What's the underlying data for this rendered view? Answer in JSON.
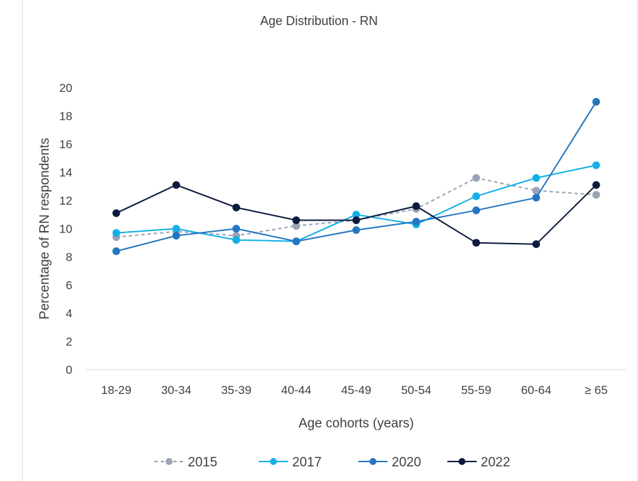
{
  "chart_data": {
    "type": "line",
    "title": "Age Distribution - RN",
    "xlabel": "Age cohorts (years)",
    "ylabel": "Percentage of RN respondents",
    "categories": [
      "18-29",
      "30-34",
      "35-39",
      "40-44",
      "45-49",
      "50-54",
      "55-59",
      "60-64",
      "≥ 65"
    ],
    "ylim": [
      0,
      20
    ],
    "yticks": [
      "0",
      "2",
      "4",
      "6",
      "8",
      "10",
      "12",
      "14",
      "16",
      "18",
      "20"
    ],
    "grid": false,
    "legend_position": "bottom",
    "series": [
      {
        "name": "2015",
        "color": "#9aa3b5",
        "dashed": true,
        "values": [
          9.4,
          9.8,
          9.5,
          10.2,
          10.6,
          11.4,
          13.6,
          12.7,
          12.4
        ]
      },
      {
        "name": "2017",
        "color": "#12b0e6",
        "dashed": false,
        "values": [
          9.7,
          10.0,
          9.2,
          9.1,
          11.0,
          10.3,
          12.3,
          13.6,
          14.5
        ]
      },
      {
        "name": "2020",
        "color": "#2476c1",
        "dashed": false,
        "values": [
          8.4,
          9.5,
          10.0,
          9.1,
          9.9,
          10.5,
          11.3,
          12.2,
          19.0
        ]
      },
      {
        "name": "2022",
        "color": "#0c1a3d",
        "dashed": false,
        "values": [
          11.1,
          13.1,
          11.5,
          10.6,
          10.6,
          11.6,
          9.0,
          8.9,
          13.1
        ]
      }
    ]
  }
}
